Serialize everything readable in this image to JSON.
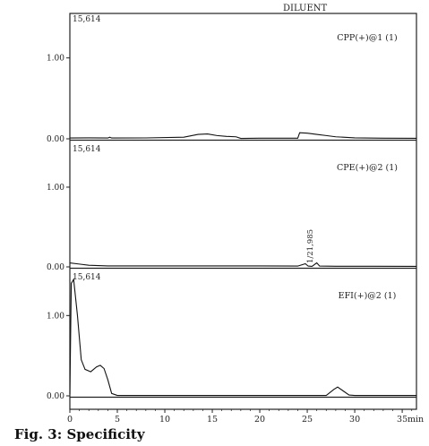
{
  "caption": "Fig. 3: Specificity",
  "chart_data": {
    "type": "line",
    "top_label": "DILUENT",
    "x_unit": "min",
    "x_ticks": [
      "0",
      "5",
      "10",
      "15",
      "20",
      "25",
      "30",
      "35"
    ],
    "xlim": [
      0,
      36.5
    ],
    "panels": [
      {
        "name": "CPP(+)@1 (1)",
        "scale_label": "15,614",
        "y_ticks": [
          "1.00",
          "0.00"
        ],
        "ylim": [
          0,
          1.55
        ],
        "peak_label": "",
        "points": [
          [
            0,
            0.01
          ],
          [
            2,
            0.012
          ],
          [
            4,
            0.01
          ],
          [
            4.2,
            0.02
          ],
          [
            4.4,
            0.01
          ],
          [
            8,
            0.011
          ],
          [
            12,
            0.02
          ],
          [
            13.5,
            0.055
          ],
          [
            14.5,
            0.06
          ],
          [
            15.5,
            0.04
          ],
          [
            16.5,
            0.03
          ],
          [
            17.5,
            0.025
          ],
          [
            18,
            0.005
          ],
          [
            20,
            0.008
          ],
          [
            24,
            0.008
          ],
          [
            24.2,
            0.075
          ],
          [
            25,
            0.07
          ],
          [
            26,
            0.055
          ],
          [
            27,
            0.04
          ],
          [
            28,
            0.025
          ],
          [
            30,
            0.012
          ],
          [
            33,
            0.008
          ],
          [
            36.5,
            0.006
          ]
        ]
      },
      {
        "name": "CPE(+)@2 (1)",
        "scale_label": "15,614",
        "y_ticks": [
          "1.00",
          "0.00"
        ],
        "ylim": [
          0,
          1.55
        ],
        "peak_label": "1/21,985",
        "peak_x": 25.2,
        "points": [
          [
            0,
            0.05
          ],
          [
            1,
            0.035
          ],
          [
            2,
            0.02
          ],
          [
            4,
            0.012
          ],
          [
            8,
            0.012
          ],
          [
            14,
            0.012
          ],
          [
            20,
            0.012
          ],
          [
            24,
            0.01
          ],
          [
            24.8,
            0.04
          ],
          [
            25.1,
            0.01
          ],
          [
            25.5,
            0.006
          ],
          [
            26,
            0.05
          ],
          [
            26.3,
            0.01
          ],
          [
            28,
            0.008
          ],
          [
            32,
            0.008
          ],
          [
            36.5,
            0.006
          ]
        ]
      },
      {
        "name": "EFI(+)@2 (1)",
        "scale_label": "15,614",
        "y_ticks": [
          "1.00",
          "0.00"
        ],
        "ylim": [
          0,
          1.55
        ],
        "peak_label": "",
        "points": [
          [
            0,
            0.02
          ],
          [
            0.15,
            1.4
          ],
          [
            0.4,
            1.45
          ],
          [
            0.8,
            1.0
          ],
          [
            1.2,
            0.45
          ],
          [
            1.6,
            0.33
          ],
          [
            2.2,
            0.3
          ],
          [
            2.8,
            0.36
          ],
          [
            3.2,
            0.38
          ],
          [
            3.6,
            0.34
          ],
          [
            4.0,
            0.2
          ],
          [
            4.4,
            0.03
          ],
          [
            5,
            0.005
          ],
          [
            10,
            0.005
          ],
          [
            20,
            0.005
          ],
          [
            27,
            0.005
          ],
          [
            27.8,
            0.08
          ],
          [
            28.2,
            0.11
          ],
          [
            28.8,
            0.06
          ],
          [
            29.4,
            0.01
          ],
          [
            30,
            0.005
          ],
          [
            36.5,
            0.005
          ]
        ]
      }
    ]
  }
}
